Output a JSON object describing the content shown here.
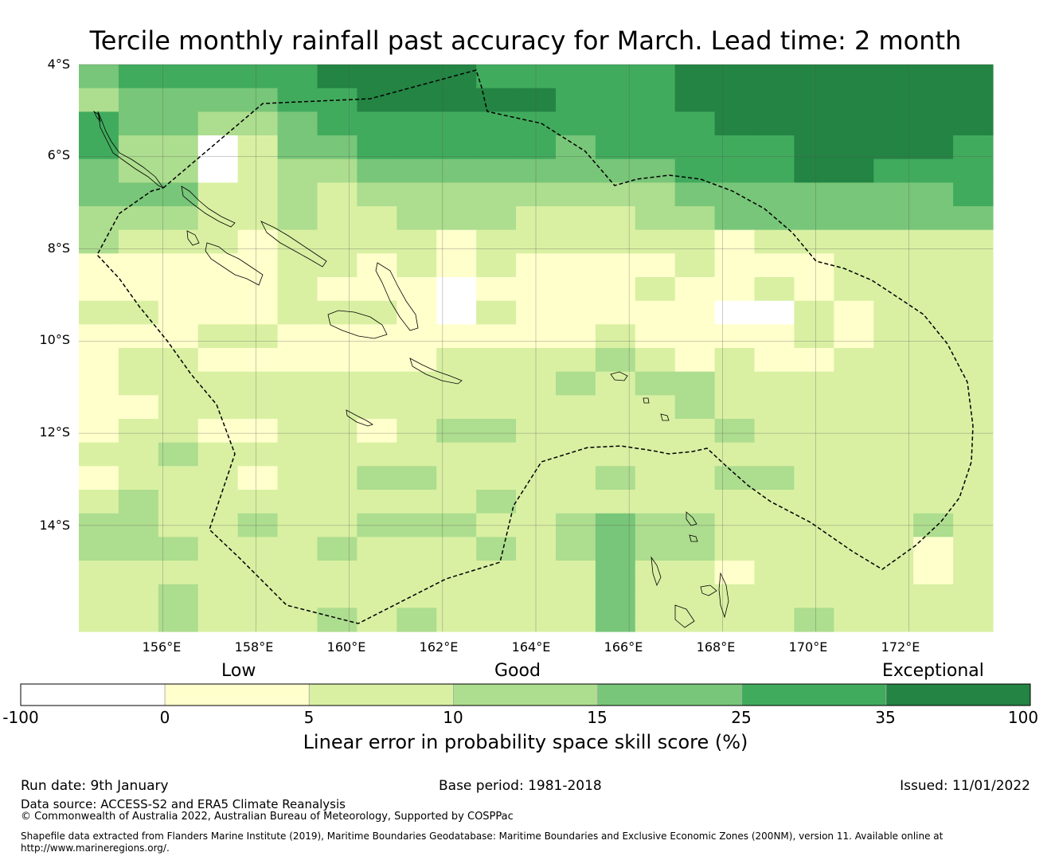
{
  "title": "Tercile monthly rainfall past accuracy for March. Lead time: 2 month",
  "lat_labels": [
    "4°S",
    "6°S",
    "8°S",
    "10°S",
    "12°S",
    "14°S"
  ],
  "lon_labels": [
    "156°E",
    "158°E",
    "160°E",
    "162°E",
    "164°E",
    "166°E",
    "168°E",
    "170°E",
    "172°E"
  ],
  "legend": {
    "categories": [
      "Low",
      "Good",
      "Exceptional"
    ],
    "ticks": [
      "-100",
      "0",
      "5",
      "10",
      "15",
      "25",
      "35",
      "100"
    ],
    "colors": [
      "#ffffff",
      "#ffffcc",
      "#d9f0a3",
      "#addd8e",
      "#78c679",
      "#41ab5d",
      "#238443"
    ],
    "title": "Linear error in probability space skill score (%)"
  },
  "footer": {
    "run_date": "Run date: 9th January",
    "base_period": "Base period: 1981-2018",
    "issued": "Issued: 11/01/2022",
    "data_source": "Data source: ACCESS-S2 and ERA5 Climate Reanalysis",
    "copyright": "© Commonwealth of Australia 2022, Australian Bureau of Meteorology, Supported by COSPPac",
    "shapefile_1": "Shapefile data extracted from Flanders Marine Institute (2019), Maritime Boundaries Geodatabase: Maritime Boundaries and Exclusive Economic Zones (200NM), version 11. Available online at",
    "shapefile_2": "http://www.marineregions.org/."
  },
  "chart_data": {
    "type": "heatmap",
    "title": "Tercile monthly rainfall past accuracy for March. Lead time: 2 month",
    "x_range_deg_e": [
      154.2,
      173.8
    ],
    "y_range_deg_s": [
      4.0,
      16.3
    ],
    "cell_size_deg": 0.833,
    "x_ticks": [
      156,
      158,
      160,
      162,
      164,
      166,
      168,
      170,
      172
    ],
    "y_ticks": [
      4,
      6,
      8,
      10,
      12,
      14
    ],
    "bins_percent": [
      -100,
      0,
      5,
      10,
      15,
      25,
      35,
      100
    ],
    "grid_note": "each digit is the colour-bin index 0-6 of one grid cell, rows from north to south, columns from west to east",
    "grid": [
      "45555566665555566666666",
      "34444556666655566666666",
      "54433455555555556666666",
      "53302445555545555566665",
      "43302334444444455566555",
      "44422323333333344444445",
      "33322322333222334444444",
      "32221222212222221222222",
      "11111221212111121112222",
      "11111211101111211212222",
      "22111222102111110021222",
      "11122111111112111121222",
      "12211111122223212112222",
      "12222222222232332222222",
      "11222222222222232222222",
      "12211221233222223222222",
      "22322222222222222222222",
      "12221223322223223322222",
      "23222222223222222222222",
      "33223223332234332222232",
      "33322232223234332222212",
      "22222222222224221222212",
      "22322222222224222222222",
      "22322232322224222232222"
    ]
  }
}
